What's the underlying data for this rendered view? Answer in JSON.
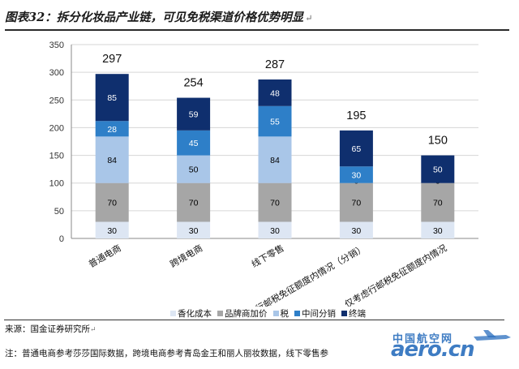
{
  "title": "图表32：拆分化妆品产业链，可见免税渠道价格优势明显",
  "paragraph_mark": "↵",
  "source": "来源：国金证券研究所",
  "note": "注：普通电商参考莎莎国际数据，跨境电商参考青岛金王和丽人丽妆数据，线下零售参",
  "watermark": {
    "line1": "中国航空网",
    "line2": "aero.cn"
  },
  "colors": {
    "香化成本": "#dde6f3",
    "品牌商加价": "#a6a6a6",
    "税": "#a9c6e8",
    "中间分销": "#2e7fc8",
    "终端": "#0f2f6e"
  },
  "chart_data": {
    "type": "bar",
    "stacked": true,
    "title": "",
    "xlabel": "",
    "ylabel": "",
    "ylim": [
      0,
      350
    ],
    "yticks": [
      0,
      50,
      100,
      150,
      200,
      250,
      300,
      350
    ],
    "grid": true,
    "legend_position": "bottom",
    "categories": [
      "普通电商",
      "跨境电商",
      "线下零售",
      "仅考虑行邮税免征额度内情况（分销）",
      "仅考虑行邮税免征额度内情况"
    ],
    "totals": [
      297,
      254,
      287,
      195,
      150
    ],
    "series": [
      {
        "name": "香化成本",
        "values": [
          30,
          30,
          30,
          30,
          30
        ]
      },
      {
        "name": "品牌商加价",
        "values": [
          70,
          70,
          70,
          70,
          70
        ]
      },
      {
        "name": "税",
        "values": [
          84,
          50,
          84,
          0,
          0
        ]
      },
      {
        "name": "中间分销",
        "values": [
          28,
          45,
          55,
          30,
          0
        ]
      },
      {
        "name": "终端",
        "values": [
          85,
          59,
          48,
          65,
          50
        ]
      }
    ]
  }
}
